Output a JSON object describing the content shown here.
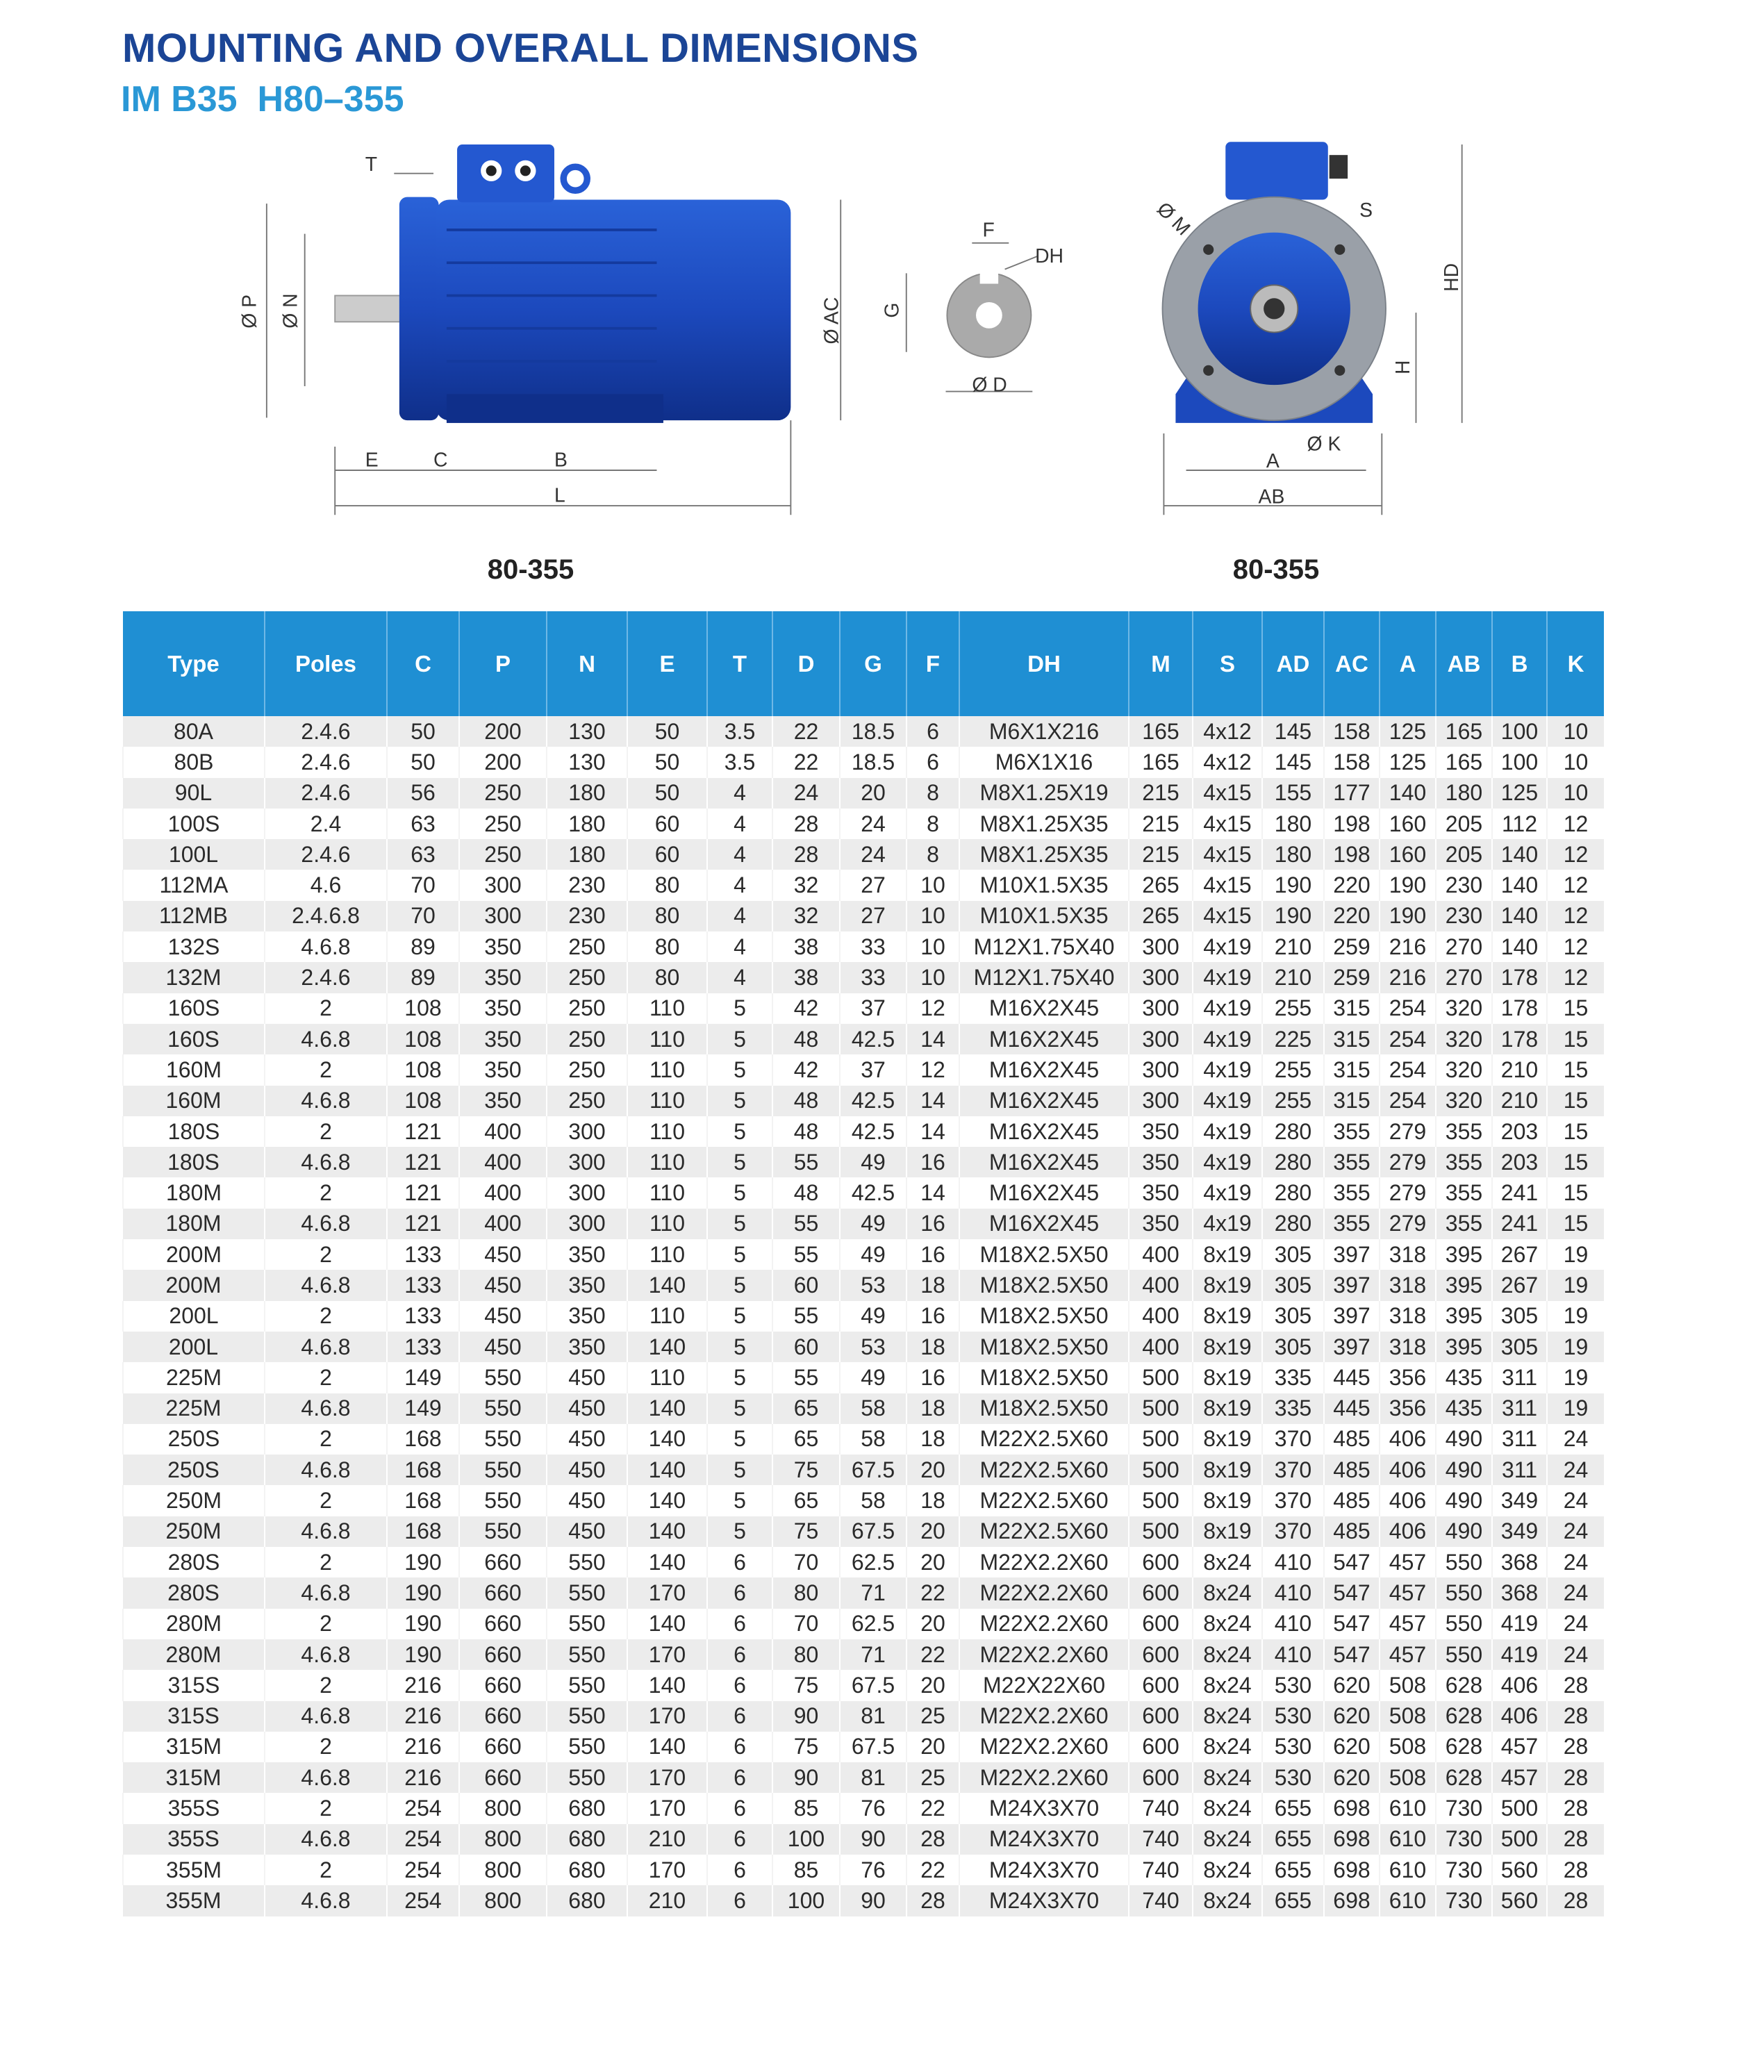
{
  "header": {
    "title": "MOUNTING AND OVERALL DIMENSIONS",
    "subtitle": "IM B35  H80–355"
  },
  "colors": {
    "title": "#1b4596",
    "subtitle": "#2a98d6",
    "table_header": "#1f8fd3",
    "motor": "#1d4fc4"
  },
  "drawings": {
    "side_view_label": "80-355",
    "end_view_label": "80-355",
    "side_labels": {
      "T": "T",
      "P": "Ø P",
      "N": "Ø N",
      "E": "E",
      "C": "C",
      "B": "B",
      "L": "L",
      "AC": "Ø AC"
    },
    "shaft_labels": {
      "F": "F",
      "DH": "DH",
      "G": "G",
      "D": "Ø D"
    },
    "end_labels": {
      "M": "Ø M",
      "S": "S",
      "HD": "HD",
      "H": "H",
      "K": "Ø K",
      "A": "A",
      "AB": "AB"
    }
  },
  "table": {
    "columns": [
      "Type",
      "Poles",
      "C",
      "P",
      "N",
      "E",
      "T",
      "D",
      "G",
      "F",
      "DH",
      "M",
      "S",
      "AD",
      "AC",
      "A",
      "AB",
      "B",
      "K"
    ],
    "rows": [
      [
        "80A",
        "2.4.6",
        "50",
        "200",
        "130",
        "50",
        "3.5",
        "22",
        "18.5",
        "6",
        "M6X1X216",
        "165",
        "4x12",
        "145",
        "158",
        "125",
        "165",
        "100",
        "10"
      ],
      [
        "80B",
        "2.4.6",
        "50",
        "200",
        "130",
        "50",
        "3.5",
        "22",
        "18.5",
        "6",
        "M6X1X16",
        "165",
        "4x12",
        "145",
        "158",
        "125",
        "165",
        "100",
        "10"
      ],
      [
        "90L",
        "2.4.6",
        "56",
        "250",
        "180",
        "50",
        "4",
        "24",
        "20",
        "8",
        "M8X1.25X19",
        "215",
        "4x15",
        "155",
        "177",
        "140",
        "180",
        "125",
        "10"
      ],
      [
        "100S",
        "2.4",
        "63",
        "250",
        "180",
        "60",
        "4",
        "28",
        "24",
        "8",
        "M8X1.25X35",
        "215",
        "4x15",
        "180",
        "198",
        "160",
        "205",
        "112",
        "12"
      ],
      [
        "100L",
        "2.4.6",
        "63",
        "250",
        "180",
        "60",
        "4",
        "28",
        "24",
        "8",
        "M8X1.25X35",
        "215",
        "4x15",
        "180",
        "198",
        "160",
        "205",
        "140",
        "12"
      ],
      [
        "112MA",
        "4.6",
        "70",
        "300",
        "230",
        "80",
        "4",
        "32",
        "27",
        "10",
        "M10X1.5X35",
        "265",
        "4x15",
        "190",
        "220",
        "190",
        "230",
        "140",
        "12"
      ],
      [
        "112MB",
        "2.4.6.8",
        "70",
        "300",
        "230",
        "80",
        "4",
        "32",
        "27",
        "10",
        "M10X1.5X35",
        "265",
        "4x15",
        "190",
        "220",
        "190",
        "230",
        "140",
        "12"
      ],
      [
        "132S",
        "4.6.8",
        "89",
        "350",
        "250",
        "80",
        "4",
        "38",
        "33",
        "10",
        "M12X1.75X40",
        "300",
        "4x19",
        "210",
        "259",
        "216",
        "270",
        "140",
        "12"
      ],
      [
        "132M",
        "2.4.6",
        "89",
        "350",
        "250",
        "80",
        "4",
        "38",
        "33",
        "10",
        "M12X1.75X40",
        "300",
        "4x19",
        "210",
        "259",
        "216",
        "270",
        "178",
        "12"
      ],
      [
        "160S",
        "2",
        "108",
        "350",
        "250",
        "110",
        "5",
        "42",
        "37",
        "12",
        "M16X2X45",
        "300",
        "4x19",
        "255",
        "315",
        "254",
        "320",
        "178",
        "15"
      ],
      [
        "160S",
        "4.6.8",
        "108",
        "350",
        "250",
        "110",
        "5",
        "48",
        "42.5",
        "14",
        "M16X2X45",
        "300",
        "4x19",
        "225",
        "315",
        "254",
        "320",
        "178",
        "15"
      ],
      [
        "160M",
        "2",
        "108",
        "350",
        "250",
        "110",
        "5",
        "42",
        "37",
        "12",
        "M16X2X45",
        "300",
        "4x19",
        "255",
        "315",
        "254",
        "320",
        "210",
        "15"
      ],
      [
        "160M",
        "4.6.8",
        "108",
        "350",
        "250",
        "110",
        "5",
        "48",
        "42.5",
        "14",
        "M16X2X45",
        "300",
        "4x19",
        "255",
        "315",
        "254",
        "320",
        "210",
        "15"
      ],
      [
        "180S",
        "2",
        "121",
        "400",
        "300",
        "110",
        "5",
        "48",
        "42.5",
        "14",
        "M16X2X45",
        "350",
        "4x19",
        "280",
        "355",
        "279",
        "355",
        "203",
        "15"
      ],
      [
        "180S",
        "4.6.8",
        "121",
        "400",
        "300",
        "110",
        "5",
        "55",
        "49",
        "16",
        "M16X2X45",
        "350",
        "4x19",
        "280",
        "355",
        "279",
        "355",
        "203",
        "15"
      ],
      [
        "180M",
        "2",
        "121",
        "400",
        "300",
        "110",
        "5",
        "48",
        "42.5",
        "14",
        "M16X2X45",
        "350",
        "4x19",
        "280",
        "355",
        "279",
        "355",
        "241",
        "15"
      ],
      [
        "180M",
        "4.6.8",
        "121",
        "400",
        "300",
        "110",
        "5",
        "55",
        "49",
        "16",
        "M16X2X45",
        "350",
        "4x19",
        "280",
        "355",
        "279",
        "355",
        "241",
        "15"
      ],
      [
        "200M",
        "2",
        "133",
        "450",
        "350",
        "110",
        "5",
        "55",
        "49",
        "16",
        "M18X2.5X50",
        "400",
        "8x19",
        "305",
        "397",
        "318",
        "395",
        "267",
        "19"
      ],
      [
        "200M",
        "4.6.8",
        "133",
        "450",
        "350",
        "140",
        "5",
        "60",
        "53",
        "18",
        "M18X2.5X50",
        "400",
        "8x19",
        "305",
        "397",
        "318",
        "395",
        "267",
        "19"
      ],
      [
        "200L",
        "2",
        "133",
        "450",
        "350",
        "110",
        "5",
        "55",
        "49",
        "16",
        "M18X2.5X50",
        "400",
        "8x19",
        "305",
        "397",
        "318",
        "395",
        "305",
        "19"
      ],
      [
        "200L",
        "4.6.8",
        "133",
        "450",
        "350",
        "140",
        "5",
        "60",
        "53",
        "18",
        "M18X2.5X50",
        "400",
        "8x19",
        "305",
        "397",
        "318",
        "395",
        "305",
        "19"
      ],
      [
        "225M",
        "2",
        "149",
        "550",
        "450",
        "110",
        "5",
        "55",
        "49",
        "16",
        "M18X2.5X50",
        "500",
        "8x19",
        "335",
        "445",
        "356",
        "435",
        "311",
        "19"
      ],
      [
        "225M",
        "4.6.8",
        "149",
        "550",
        "450",
        "140",
        "5",
        "65",
        "58",
        "18",
        "M18X2.5X50",
        "500",
        "8x19",
        "335",
        "445",
        "356",
        "435",
        "311",
        "19"
      ],
      [
        "250S",
        "2",
        "168",
        "550",
        "450",
        "140",
        "5",
        "65",
        "58",
        "18",
        "M22X2.5X60",
        "500",
        "8x19",
        "370",
        "485",
        "406",
        "490",
        "311",
        "24"
      ],
      [
        "250S",
        "4.6.8",
        "168",
        "550",
        "450",
        "140",
        "5",
        "75",
        "67.5",
        "20",
        "M22X2.5X60",
        "500",
        "8x19",
        "370",
        "485",
        "406",
        "490",
        "311",
        "24"
      ],
      [
        "250M",
        "2",
        "168",
        "550",
        "450",
        "140",
        "5",
        "65",
        "58",
        "18",
        "M22X2.5X60",
        "500",
        "8x19",
        "370",
        "485",
        "406",
        "490",
        "349",
        "24"
      ],
      [
        "250M",
        "4.6.8",
        "168",
        "550",
        "450",
        "140",
        "5",
        "75",
        "67.5",
        "20",
        "M22X2.5X60",
        "500",
        "8x19",
        "370",
        "485",
        "406",
        "490",
        "349",
        "24"
      ],
      [
        "280S",
        "2",
        "190",
        "660",
        "550",
        "140",
        "6",
        "70",
        "62.5",
        "20",
        "M22X2.2X60",
        "600",
        "8x24",
        "410",
        "547",
        "457",
        "550",
        "368",
        "24"
      ],
      [
        "280S",
        "4.6.8",
        "190",
        "660",
        "550",
        "170",
        "6",
        "80",
        "71",
        "22",
        "M22X2.2X60",
        "600",
        "8x24",
        "410",
        "547",
        "457",
        "550",
        "368",
        "24"
      ],
      [
        "280M",
        "2",
        "190",
        "660",
        "550",
        "140",
        "6",
        "70",
        "62.5",
        "20",
        "M22X2.2X60",
        "600",
        "8x24",
        "410",
        "547",
        "457",
        "550",
        "419",
        "24"
      ],
      [
        "280M",
        "4.6.8",
        "190",
        "660",
        "550",
        "170",
        "6",
        "80",
        "71",
        "22",
        "M22X2.2X60",
        "600",
        "8x24",
        "410",
        "547",
        "457",
        "550",
        "419",
        "24"
      ],
      [
        "315S",
        "2",
        "216",
        "660",
        "550",
        "140",
        "6",
        "75",
        "67.5",
        "20",
        "M22X22X60",
        "600",
        "8x24",
        "530",
        "620",
        "508",
        "628",
        "406",
        "28"
      ],
      [
        "315S",
        "4.6.8",
        "216",
        "660",
        "550",
        "170",
        "6",
        "90",
        "81",
        "25",
        "M22X2.2X60",
        "600",
        "8x24",
        "530",
        "620",
        "508",
        "628",
        "406",
        "28"
      ],
      [
        "315M",
        "2",
        "216",
        "660",
        "550",
        "140",
        "6",
        "75",
        "67.5",
        "20",
        "M22X2.2X60",
        "600",
        "8x24",
        "530",
        "620",
        "508",
        "628",
        "457",
        "28"
      ],
      [
        "315M",
        "4.6.8",
        "216",
        "660",
        "550",
        "170",
        "6",
        "90",
        "81",
        "25",
        "M22X2.2X60",
        "600",
        "8x24",
        "530",
        "620",
        "508",
        "628",
        "457",
        "28"
      ],
      [
        "355S",
        "2",
        "254",
        "800",
        "680",
        "170",
        "6",
        "85",
        "76",
        "22",
        "M24X3X70",
        "740",
        "8x24",
        "655",
        "698",
        "610",
        "730",
        "500",
        "28"
      ],
      [
        "355S",
        "4.6.8",
        "254",
        "800",
        "680",
        "210",
        "6",
        "100",
        "90",
        "28",
        "M24X3X70",
        "740",
        "8x24",
        "655",
        "698",
        "610",
        "730",
        "500",
        "28"
      ],
      [
        "355M",
        "2",
        "254",
        "800",
        "680",
        "170",
        "6",
        "85",
        "76",
        "22",
        "M24X3X70",
        "740",
        "8x24",
        "655",
        "698",
        "610",
        "730",
        "560",
        "28"
      ],
      [
        "355M",
        "4.6.8",
        "254",
        "800",
        "680",
        "210",
        "6",
        "100",
        "90",
        "28",
        "M24X3X70",
        "740",
        "8x24",
        "655",
        "698",
        "610",
        "730",
        "560",
        "28"
      ]
    ]
  }
}
